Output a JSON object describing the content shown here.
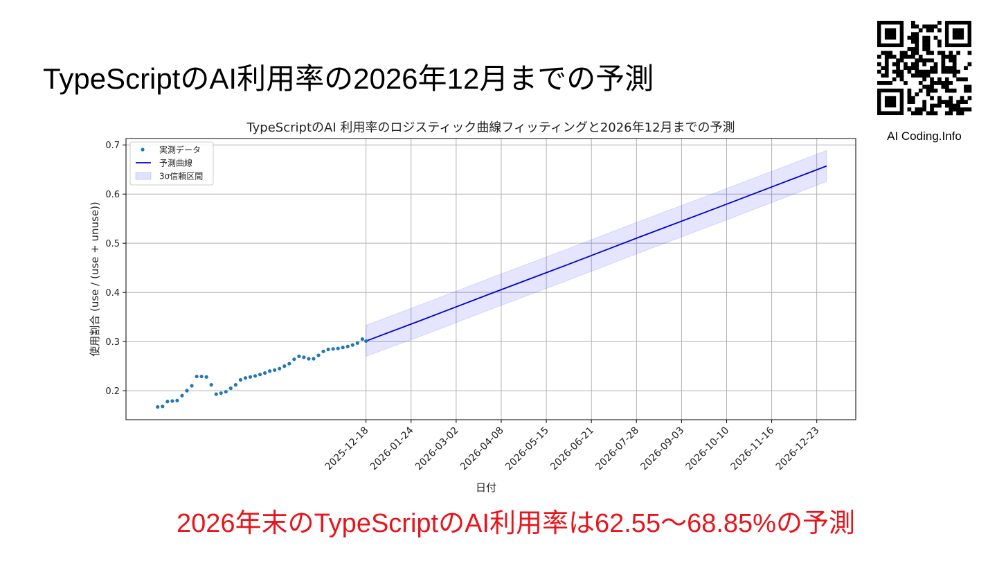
{
  "header": {
    "title": "TypeScriptのAI利用率の2026年12月までの予測",
    "logo_caption": "AI Coding.Info"
  },
  "chart_data": {
    "type": "line",
    "title": "TypeScriptのAI 利用率のロジスティック曲線フィッティングと2026年12月までの予測",
    "x_label": "日付",
    "y_label": "使用割合 (use / (use + unuse))",
    "xlim": [
      "2025-06-04",
      "2027-01-24"
    ],
    "ylim": [
      0.141,
      0.713
    ],
    "xticks": [
      "2025-12-18",
      "2026-01-24",
      "2026-03-02",
      "2026-04-08",
      "2026-05-15",
      "2026-06-21",
      "2026-07-28",
      "2026-09-03",
      "2026-10-10",
      "2026-11-16",
      "2026-12-23"
    ],
    "yticks": [
      0.2,
      0.3,
      0.4,
      0.5,
      0.6,
      0.7
    ],
    "grid": true,
    "legend": "upper left",
    "series": [
      {
        "name": "実測データ",
        "type": "scatter",
        "color": "#1f77b4",
        "x": [
          "2025-06-30",
          "2025-07-04",
          "2025-07-08",
          "2025-07-12",
          "2025-07-16",
          "2025-07-20",
          "2025-07-24",
          "2025-07-28",
          "2025-08-01",
          "2025-08-05",
          "2025-08-09",
          "2025-08-13",
          "2025-08-17",
          "2025-08-21",
          "2025-08-25",
          "2025-08-29",
          "2025-09-02",
          "2025-09-06",
          "2025-09-10",
          "2025-09-14",
          "2025-09-18",
          "2025-09-22",
          "2025-09-26",
          "2025-09-30",
          "2025-10-04",
          "2025-10-08",
          "2025-10-12",
          "2025-10-16",
          "2025-10-20",
          "2025-10-24",
          "2025-10-28",
          "2025-11-01",
          "2025-11-05",
          "2025-11-09",
          "2025-11-13",
          "2025-11-17",
          "2025-11-21",
          "2025-11-25",
          "2025-11-29",
          "2025-12-03",
          "2025-12-07",
          "2025-12-11",
          "2025-12-15",
          "2025-12-18"
        ],
        "values": [
          0.167,
          0.168,
          0.178,
          0.179,
          0.18,
          0.19,
          0.2,
          0.21,
          0.229,
          0.229,
          0.228,
          0.212,
          0.193,
          0.195,
          0.198,
          0.205,
          0.212,
          0.222,
          0.226,
          0.228,
          0.23,
          0.233,
          0.236,
          0.24,
          0.242,
          0.245,
          0.25,
          0.255,
          0.264,
          0.27,
          0.268,
          0.265,
          0.265,
          0.272,
          0.28,
          0.284,
          0.285,
          0.286,
          0.288,
          0.29,
          0.293,
          0.297,
          0.305,
          0.301
        ]
      },
      {
        "name": "予測曲線",
        "type": "line",
        "color": "#0000cd",
        "x": [
          "2025-12-18",
          "2026-02-01",
          "2026-04-01",
          "2026-06-01",
          "2026-08-01",
          "2026-10-01",
          "2026-12-31"
        ],
        "values": [
          0.301,
          0.343,
          0.399,
          0.456,
          0.514,
          0.571,
          0.657
        ]
      },
      {
        "name": "3σ信頼区間",
        "type": "band",
        "color": "#0000ff",
        "x": [
          "2025-12-18",
          "2026-02-01",
          "2026-04-01",
          "2026-06-01",
          "2026-08-01",
          "2026-10-01",
          "2026-12-31"
        ],
        "lower": [
          0.27,
          0.311,
          0.367,
          0.424,
          0.482,
          0.539,
          0.6255
        ],
        "upper": [
          0.333,
          0.375,
          0.431,
          0.488,
          0.546,
          0.603,
          0.6885
        ]
      }
    ]
  },
  "footer": {
    "conclusion": "2026年末のTypeScriptのAI利用率は62.55～68.85%の予測"
  }
}
